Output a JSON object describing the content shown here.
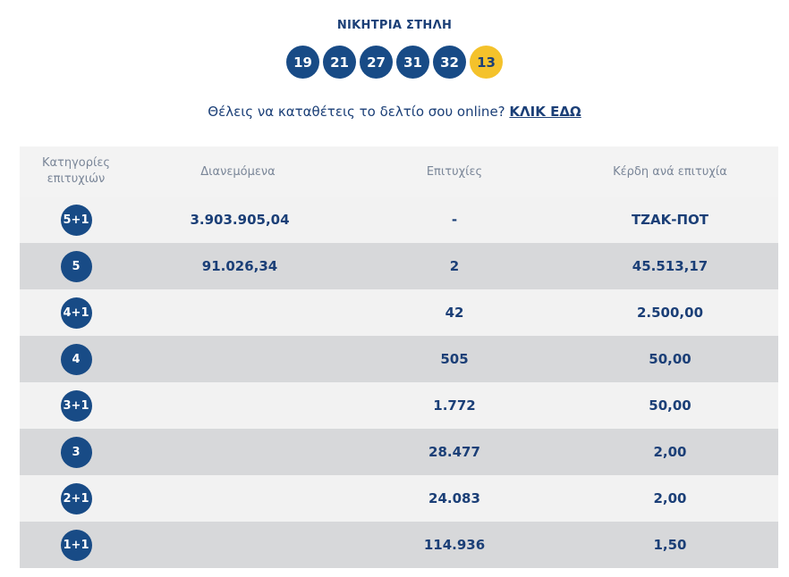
{
  "winning_title": "ΝΙΚΗΤΡΙΑ ΣΤΗΛΗ",
  "numbers": [
    "19",
    "21",
    "27",
    "31",
    "32"
  ],
  "joker": "13",
  "cta": {
    "text": "Θέλεις να καταθέτεις το δελτίο σου online?",
    "link": "ΚΛΙΚ ΕΔΩ"
  },
  "headers": {
    "category_line1": "Κατηγορίες",
    "category_line2": "επιτυχιών",
    "distributed": "Διανεμόμενα",
    "winners": "Επιτυχίες",
    "prize": "Κέρδη ανά επιτυχία"
  },
  "rows": [
    {
      "category": "5+1",
      "distributed": "3.903.905,04",
      "winners": "-",
      "prize": "ΤΖΑΚ-ΠΟΤ"
    },
    {
      "category": "5",
      "distributed": "91.026,34",
      "winners": "2",
      "prize": "45.513,17"
    },
    {
      "category": "4+1",
      "distributed": "",
      "winners": "42",
      "prize": "2.500,00"
    },
    {
      "category": "4",
      "distributed": "",
      "winners": "505",
      "prize": "50,00"
    },
    {
      "category": "3+1",
      "distributed": "",
      "winners": "1.772",
      "prize": "50,00"
    },
    {
      "category": "3",
      "distributed": "",
      "winners": "28.477",
      "prize": "2,00"
    },
    {
      "category": "2+1",
      "distributed": "",
      "winners": "24.083",
      "prize": "2,00"
    },
    {
      "category": "1+1",
      "distributed": "",
      "winners": "114.936",
      "prize": "1,50"
    }
  ],
  "colors": {
    "ball": "#184b86",
    "joker": "#f4c22b",
    "text": "#1b3f77",
    "row_light": "#f2f2f2",
    "row_dark": "#d7d8da"
  }
}
